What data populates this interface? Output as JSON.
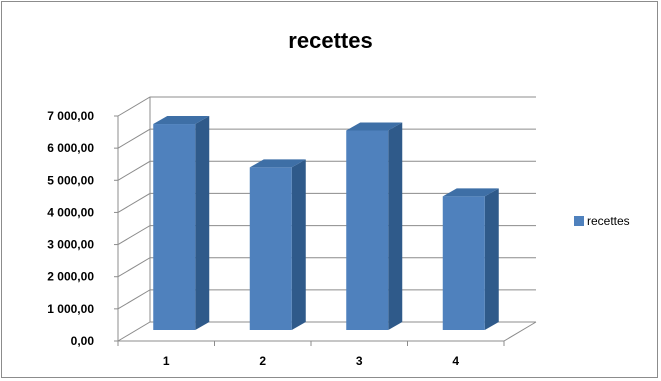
{
  "chart_data": {
    "type": "bar",
    "title": "recettes",
    "categories": [
      "1",
      "2",
      "3",
      "4"
    ],
    "series": [
      {
        "name": "recettes",
        "values": [
          6750,
          5400,
          6550,
          4500
        ],
        "color": "#4f81bd"
      }
    ],
    "ylim": [
      0,
      7000
    ],
    "yticks": [
      0,
      1000,
      2000,
      3000,
      4000,
      5000,
      6000,
      7000
    ],
    "ytick_labels": [
      "0,00",
      "1 000,00",
      "2 000,00",
      "3 000,00",
      "4 000,00",
      "5 000,00",
      "6 000,00",
      "7 000,00"
    ],
    "xlabel": "",
    "ylabel": "",
    "grid": true,
    "legend": "right",
    "style": "3d-column"
  }
}
